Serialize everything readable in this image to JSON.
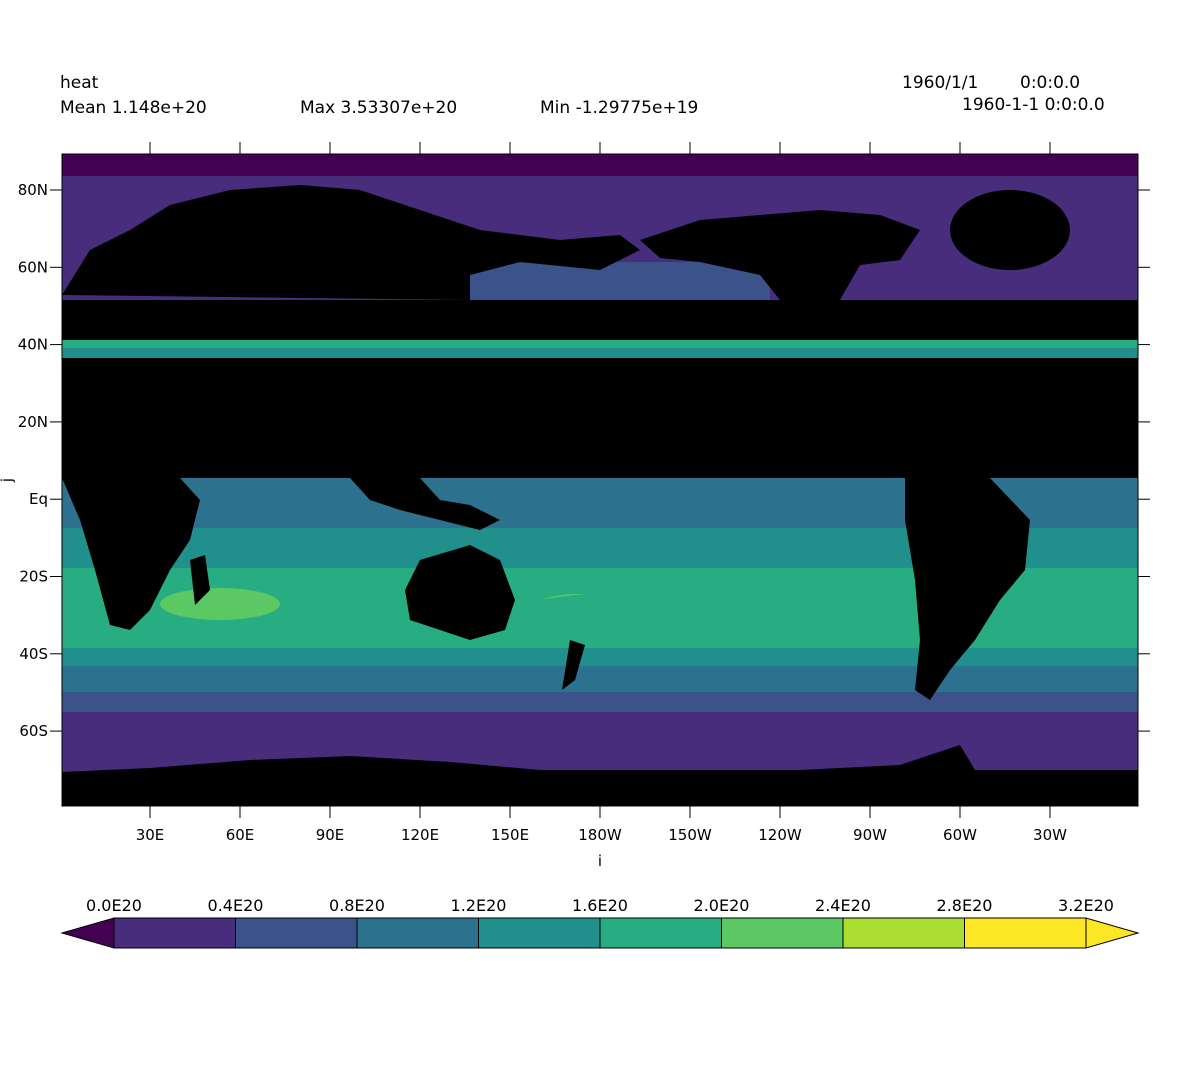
{
  "header": {
    "variable": "heat",
    "mean_text": "Mean 1.148e+20",
    "max_text": "Max 3.53307e+20",
    "min_text": "Min -1.29775e+19",
    "date_text": "1960/1/1",
    "time_text": "0:0:0.0",
    "datetime_text": "1960-1-1 0:0:0.0"
  },
  "axes": {
    "xlabel": "i",
    "ylabel": "j",
    "x_ticks": [
      "30E",
      "60E",
      "90E",
      "120E",
      "150E",
      "180W",
      "150W",
      "120W",
      "90W",
      "60W",
      "30W"
    ],
    "y_ticks": [
      "80N",
      "60N",
      "40N",
      "20N",
      "Eq",
      "20S",
      "40S",
      "60S"
    ]
  },
  "colorbar": {
    "labels": [
      "0.0E20",
      "0.4E20",
      "0.8E20",
      "1.2E20",
      "1.6E20",
      "2.0E20",
      "2.4E20",
      "2.8E20",
      "3.2E20"
    ],
    "colors": [
      "#440154",
      "#472d7b",
      "#3b528b",
      "#2c728e",
      "#21908d",
      "#27ad81",
      "#5cc863",
      "#aadc32",
      "#fde725"
    ],
    "bins": [
      0.0,
      0.4,
      0.8,
      1.2,
      1.6,
      2.0,
      2.4,
      2.8,
      3.2
    ]
  },
  "chart_data": {
    "type": "heatmap",
    "variable": "heat",
    "mean": 1.148e+20,
    "max": 3.53307e+20,
    "min": -1.29775e+19,
    "xlabel": "i",
    "ylabel": "j",
    "land_color": "#000000",
    "masked_band": "land/masked from ~38N to ~5N",
    "zonal_bands": [
      {
        "lat_range": "90N-86N",
        "value_range": "<0.0E20"
      },
      {
        "lat_range": "86N-45N",
        "value_range": "0.0-0.4E20"
      },
      {
        "lat_range": "45N-38N",
        "value_range": "1.6-2.4E20"
      },
      {
        "lat_range": "5N-15S",
        "value_range": "1.2-1.6E20"
      },
      {
        "lat_range": "15S-40S",
        "value_range": "1.6-2.4E20"
      },
      {
        "lat_range": "40S-50S",
        "value_range": "0.8-1.6E20"
      },
      {
        "lat_range": "50S-70S",
        "value_range": "0.0-0.4E20"
      },
      {
        "lat_range": "70S-90S",
        "value_range": "land/masked"
      }
    ]
  }
}
